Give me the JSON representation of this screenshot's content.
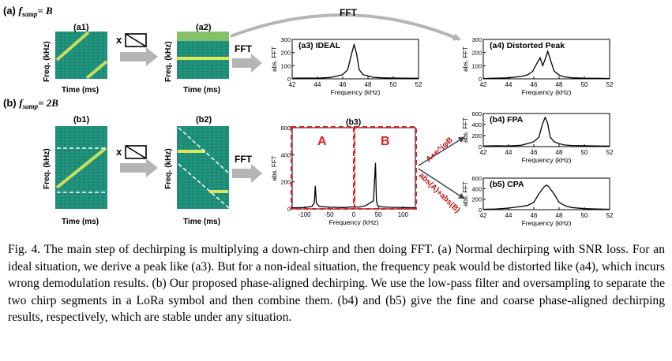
{
  "figure": {
    "fft_top_label": "FFT",
    "row_a": {
      "label": "(a)",
      "label_math": "f",
      "label_sub": "samp",
      "label_eq": "= B"
    },
    "row_b": {
      "label": "(b)",
      "label_math": "f",
      "label_sub": "samp",
      "label_eq": "= 2B"
    },
    "spectrogram": {
      "ylabel": "Freq. (kHz)",
      "xlabel": "Time (ms)"
    },
    "panels": {
      "a1": "(a1)",
      "a2": "(a2)",
      "b1": "(b1)",
      "b2": "(b2)",
      "a3": "(a3) IDEAL",
      "a4": "(a4) Distorted Peak",
      "b3": "(b3)",
      "b4": "(b4) FPA",
      "b5": "(b5) CPA"
    },
    "fft_label": "FFT",
    "multiply_label": "x",
    "segments": {
      "a": "A",
      "b": "B"
    },
    "combine_fine": "A+e^jφB",
    "combine_coarse": "abs(A)+abs(B)"
  },
  "chart_data": [
    {
      "id": "a3",
      "type": "line",
      "title": "(a3) IDEAL",
      "xlabel": "Frequency (kHz)",
      "ylabel": "abs. FFT",
      "xlim": [
        42,
        52
      ],
      "ylim": [
        0,
        300
      ],
      "xticks": [
        "42",
        "44",
        "46",
        "48",
        "50",
        "52"
      ],
      "yticks": [
        "0",
        "100",
        "200",
        "300"
      ],
      "x": [
        42,
        43,
        44,
        45,
        45.6,
        46,
        46.4,
        46.7,
        46.9,
        47.1,
        47.3,
        47.6,
        48,
        48.4,
        49,
        50,
        51,
        52
      ],
      "y": [
        4,
        6,
        5,
        10,
        22,
        32,
        70,
        190,
        260,
        190,
        70,
        32,
        22,
        12,
        8,
        6,
        5,
        4
      ]
    },
    {
      "id": "a4",
      "type": "line",
      "title": "(a4) Distorted Peak",
      "xlabel": "Frequency (kHz)",
      "ylabel": "abs. FFT",
      "xlim": [
        42,
        52
      ],
      "ylim": [
        0,
        300
      ],
      "xticks": [
        "42",
        "44",
        "46",
        "48",
        "50",
        "52"
      ],
      "yticks": [
        "0",
        "100",
        "200",
        "300"
      ],
      "x": [
        42,
        43,
        44,
        45,
        45.5,
        45.9,
        46.2,
        46.5,
        46.7,
        46.9,
        47.1,
        47.3,
        47.6,
        48,
        48.4,
        49,
        50,
        51,
        52
      ],
      "y": [
        3,
        5,
        8,
        18,
        30,
        55,
        110,
        160,
        100,
        150,
        210,
        150,
        60,
        28,
        15,
        8,
        5,
        4,
        3
      ]
    },
    {
      "id": "b3",
      "type": "line",
      "title": "(b3)",
      "xlabel": "Frequency (kHz)",
      "ylabel": "abs. FFT",
      "xlim": [
        -125,
        125
      ],
      "ylim": [
        0,
        600
      ],
      "xticks": [
        "-100",
        "-50",
        "0",
        "50",
        "100"
      ],
      "yticks": [
        "0",
        "200",
        "400",
        "600"
      ],
      "x": [
        -125,
        -100,
        -85,
        -80,
        -78,
        -76,
        -70,
        -50,
        -20,
        0,
        10,
        25,
        40,
        44,
        46,
        48,
        55,
        70,
        100,
        125
      ],
      "y": [
        8,
        10,
        18,
        45,
        170,
        45,
        18,
        12,
        10,
        15,
        12,
        25,
        60,
        340,
        60,
        25,
        15,
        12,
        10,
        8
      ]
    },
    {
      "id": "b4",
      "type": "line",
      "title": "(b4) FPA",
      "xlabel": "Frequency (kHz)",
      "ylabel": "abs. FFT",
      "xlim": [
        42,
        52
      ],
      "ylim": [
        0,
        600
      ],
      "xticks": [
        "42",
        "44",
        "46",
        "48",
        "50",
        "52"
      ],
      "yticks": [
        "0",
        "200",
        "400",
        "600"
      ],
      "x": [
        42,
        43,
        44,
        45,
        45.6,
        46,
        46.4,
        46.7,
        46.9,
        47.1,
        47.3,
        47.6,
        48,
        48.4,
        49,
        50,
        51,
        52
      ],
      "y": [
        10,
        15,
        12,
        25,
        60,
        90,
        170,
        420,
        530,
        420,
        170,
        90,
        55,
        30,
        20,
        15,
        12,
        10
      ]
    },
    {
      "id": "b5",
      "type": "line",
      "title": "(b5) CPA",
      "xlabel": "Frequency (kHz)",
      "ylabel": "abs. FFT",
      "xlim": [
        42,
        52
      ],
      "ylim": [
        0,
        600
      ],
      "xticks": [
        "42",
        "44",
        "46",
        "48",
        "50",
        "52"
      ],
      "yticks": [
        "0",
        "200",
        "400",
        "600"
      ],
      "x": [
        42,
        43,
        44,
        45,
        45.5,
        46,
        46.4,
        46.8,
        47,
        47.2,
        47.6,
        48,
        48.5,
        49,
        50,
        51,
        52
      ],
      "y": [
        8,
        12,
        30,
        60,
        80,
        140,
        300,
        430,
        470,
        430,
        300,
        140,
        70,
        40,
        20,
        12,
        8
      ]
    }
  ],
  "caption": "Fig. 4.  The main step of dechirping is multiplying a down-chirp and then doing FFT. (a) Normal dechirping with SNR loss. For an ideal situation, we derive a peak like (a3). But for a non-ideal situation, the frequency peak would be distorted like (a4), which incurs wrong demodulation results. (b) Our proposed phase-aligned dechirping. We use the low-pass filter and oversampling to separate the two chirp segments in a LoRa symbol and then combine them. (b4) and (b5) give the fine and coarse phase-aligned dechirping results, respectively, which are stable under any situation."
}
